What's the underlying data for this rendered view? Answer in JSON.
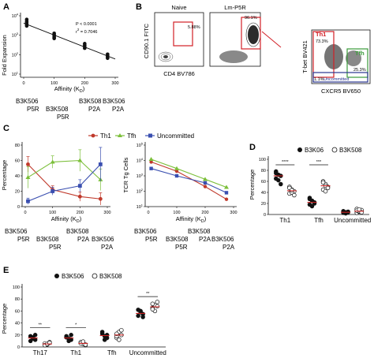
{
  "colors": {
    "th1": "#c0392b",
    "tfh": "#7cbf3a",
    "uncommitted": "#3a4fb0",
    "gate_red": "#d21f26",
    "gate_green": "#3a9a3a",
    "gate_blue": "#2a3590",
    "black": "#111111",
    "mean_red": "#cc2222"
  },
  "panel_labels": {
    "a": "A",
    "b": "B",
    "c": "C",
    "d": "D",
    "e": "E"
  },
  "panel_a": {
    "ylabel": "Fold Expansion",
    "xlabel_prefix": "Affinity (K",
    "xlabel_sub": "D",
    "xlabel_suffix": ")",
    "stat_p": "P < 0.0001",
    "stat_r_prefix": "r",
    "stat_r_sup": "2",
    "stat_r_suffix": " = 0.7046",
    "yticks": [
      {
        "base": "10",
        "exp": "1"
      },
      {
        "base": "10",
        "exp": "2"
      },
      {
        "base": "10",
        "exp": "3"
      },
      {
        "base": "10",
        "exp": "4"
      }
    ],
    "xticks": [
      "0",
      "100",
      "200",
      "300"
    ],
    "cat_row1": [
      "B3K506",
      "B3K508",
      "B3K506"
    ],
    "cat_row1_sub": [
      "P5R",
      "",
      "P2A"
    ],
    "cat_row2": [
      "B3K508",
      "B3K508"
    ],
    "cat_row2_sub": [
      "P5R",
      "P2A"
    ]
  },
  "panel_a_chart_data": {
    "type": "scatter",
    "y_scale": "log",
    "xlim": [
      0,
      300
    ],
    "ylim": [
      10,
      10000
    ],
    "groups": [
      {
        "x": 10,
        "y": [
          6500,
          5200,
          4300,
          3600,
          3000
        ]
      },
      {
        "x": 100,
        "y": [
          1250,
          1050,
          900,
          780,
          680
        ]
      },
      {
        "x": 200,
        "y": [
          370,
          310,
          255,
          215
        ]
      },
      {
        "x": 275,
        "y": [
          105,
          90,
          78,
          66
        ]
      }
    ],
    "fit": {
      "x": [
        0,
        300
      ],
      "y": [
        4200,
        60
      ]
    }
  },
  "panel_b": {
    "naive_title": "Naive",
    "lm_title": "Lm-P5R",
    "naive_ylabel": "CD90.1 FITC",
    "naive_xlabel": "CD4 BV786",
    "naive_pct": "5.88%",
    "lm_pct": "96.1%",
    "right_ylabel": "T-bet BV421",
    "right_xlabel": "CXCR5 BV650",
    "th1_label": "Th1",
    "th1_pct": "73.3%",
    "tfh_label": "Tfh",
    "tfh_pct": "25.3%",
    "unc_pct": "1.1%",
    "unc_label": "Uncommitted"
  },
  "panel_c": {
    "legend": [
      "Th1",
      "Tfh",
      "Uncommitted"
    ],
    "left_ylabel": "Percentage",
    "right_ylabel": "TCR Tg Cells",
    "xlabel_prefix": "Affinity (K",
    "xlabel_sub": "D",
    "xlabel_suffix": ")",
    "left_yticks": [
      "0",
      "20",
      "40",
      "60",
      "80"
    ],
    "xticks": [
      "0",
      "100",
      "200",
      "300"
    ],
    "right_yticks": [
      {
        "base": "10",
        "exp": "1"
      },
      {
        "base": "10",
        "exp": "2"
      },
      {
        "base": "10",
        "exp": "3"
      },
      {
        "base": "10",
        "exp": "4"
      },
      {
        "base": "10",
        "exp": "5"
      }
    ],
    "cat_row1": [
      "B3K506",
      "B3K508",
      "B3K506"
    ],
    "cat_row1_sub": [
      "P5R",
      "P2A",
      "P2A"
    ],
    "cat_row2": [
      "B3K508"
    ],
    "cat_row2_sub": [
      "P5R"
    ],
    "cat_left_row1": [
      "B3K506",
      "B3K508"
    ],
    "cat_left_row1_sub": [
      "P5R",
      "P2A"
    ],
    "cat_left_row2": [
      "B3K508",
      "B3K506"
    ],
    "cat_left_row2_sub": [
      "P5R",
      "P2A"
    ]
  },
  "panel_c_chart_data": [
    {
      "type": "line",
      "xlim": [
        0,
        300
      ],
      "ylim": [
        0,
        80
      ],
      "x": [
        10,
        100,
        200,
        275
      ],
      "series": [
        {
          "name": "Th1",
          "values": [
            55,
            22,
            13,
            10
          ],
          "err": [
            10,
            5,
            6,
            8
          ]
        },
        {
          "name": "Tfh",
          "values": [
            38,
            58,
            60,
            35
          ],
          "err": [
            14,
            8,
            14,
            14
          ]
        },
        {
          "name": "Uncommitted",
          "values": [
            7,
            20,
            27,
            55
          ],
          "err": [
            4,
            5,
            8,
            22
          ]
        }
      ]
    },
    {
      "type": "line",
      "y_scale": "log",
      "xlim": [
        0,
        300
      ],
      "ylim": [
        10,
        100000
      ],
      "x": [
        10,
        100,
        200,
        275
      ],
      "series": [
        {
          "name": "Th1",
          "values": [
            8000,
            2000,
            200,
            30
          ]
        },
        {
          "name": "Tfh",
          "values": [
            12000,
            3000,
            600,
            180
          ]
        },
        {
          "name": "Uncommitted",
          "values": [
            3000,
            1000,
            350,
            80
          ]
        }
      ]
    }
  ],
  "panel_d": {
    "legend": [
      "B3K06",
      "B3K508"
    ],
    "ylabel": "Percentage",
    "yticks": [
      "0",
      "20",
      "40",
      "60",
      "80",
      "100"
    ],
    "categories": [
      "Th1",
      "Tfh",
      "Uncommitted"
    ],
    "sig": [
      "****",
      "***"
    ]
  },
  "panel_d_chart_data": {
    "type": "scatter",
    "ylim": [
      0,
      100
    ],
    "categories": [
      "Th1",
      "Tfh",
      "Uncommitted"
    ],
    "series": [
      {
        "name": "B3K06",
        "filled": true,
        "values": [
          [
            78,
            72,
            70,
            65,
            62,
            55,
            75
          ],
          [
            30,
            25,
            20,
            18,
            15,
            22,
            28
          ],
          [
            3,
            4,
            5,
            6,
            2,
            4,
            5
          ]
        ],
        "mean": [
          70,
          22,
          4
        ]
      },
      {
        "name": "B3K508",
        "filled": false,
        "values": [
          [
            50,
            45,
            42,
            38,
            40,
            35,
            48,
            44
          ],
          [
            60,
            55,
            50,
            45,
            52,
            48,
            58,
            42
          ],
          [
            3,
            5,
            8,
            10,
            6,
            4,
            7,
            9
          ]
        ],
        "mean": [
          43,
          52,
          6
        ]
      }
    ]
  },
  "panel_e": {
    "legend": [
      "B3K506",
      "B3K508"
    ],
    "ylabel": "Percentage",
    "yticks": [
      "0",
      "20",
      "40",
      "60",
      "80",
      "100"
    ],
    "categories": [
      "Th17",
      "Th1",
      "Tfh",
      "Uncommitted"
    ],
    "sig": [
      "**",
      "*",
      "**"
    ]
  },
  "panel_e_chart_data": {
    "type": "scatter",
    "ylim": [
      0,
      100
    ],
    "categories": [
      "Th17",
      "Th1",
      "Tfh",
      "Uncommitted"
    ],
    "series": [
      {
        "name": "B3K506",
        "filled": true,
        "values": [
          [
            18,
            16,
            12,
            10,
            14,
            20
          ],
          [
            18,
            14,
            12,
            16,
            10,
            20
          ],
          [
            22,
            18,
            15,
            25,
            12,
            20
          ],
          [
            62,
            58,
            55,
            52,
            60,
            50
          ]
        ],
        "mean": [
          15,
          15,
          19,
          56
        ]
      },
      {
        "name": "B3K508",
        "filled": false,
        "values": [
          [
            6,
            4,
            8,
            3,
            5,
            7
          ],
          [
            8,
            5,
            3,
            6,
            9,
            4
          ],
          [
            15,
            25,
            20,
            18,
            12,
            28,
            22
          ],
          [
            65,
            70,
            68,
            72,
            60,
            75,
            63
          ]
        ],
        "mean": [
          5,
          6,
          20,
          67
        ]
      }
    ]
  }
}
